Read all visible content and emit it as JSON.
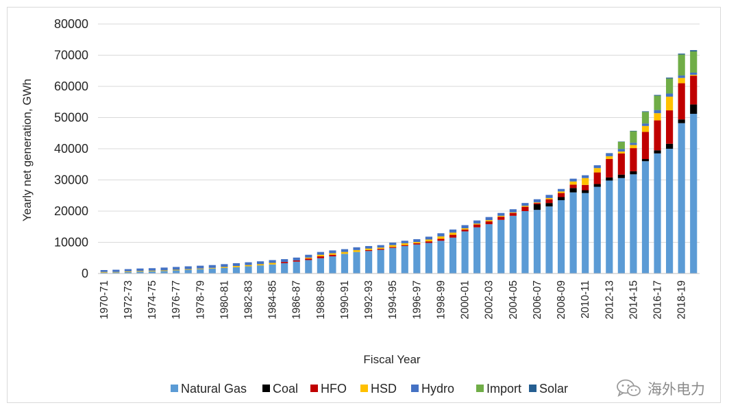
{
  "chart_data": {
    "type": "bar",
    "stacked": true,
    "title": "",
    "xlabel": "Fiscal Year",
    "ylabel": "Yearly net generation, GWh",
    "ylim": [
      0,
      80000
    ],
    "yticks": [
      0,
      10000,
      20000,
      30000,
      40000,
      50000,
      60000,
      70000,
      80000
    ],
    "grid": "horizontal",
    "legend_position": "bottom",
    "categories": [
      "1970-71",
      "1971-72",
      "1972-73",
      "1973-74",
      "1974-75",
      "1975-76",
      "1976-77",
      "1977-78",
      "1978-79",
      "1979-80",
      "1980-81",
      "1981-82",
      "1982-83",
      "1983-84",
      "1984-85",
      "1985-86",
      "1986-87",
      "1987-88",
      "1988-89",
      "1989-90",
      "1990-91",
      "1991-92",
      "1992-93",
      "1993-94",
      "1994-95",
      "1995-96",
      "1996-97",
      "1997-98",
      "1998-99",
      "1999-00",
      "2000-01",
      "2001-02",
      "2002-03",
      "2003-04",
      "2004-05",
      "2005-06",
      "2006-07",
      "2007-08",
      "2008-09",
      "2009-10",
      "2010-11",
      "2011-12",
      "2012-13",
      "2013-14",
      "2014-15",
      "2015-16",
      "2016-17",
      "2017-18",
      "2018-19",
      "2019-20"
    ],
    "tick_labels": [
      "1970-71",
      "1972-73",
      "1974-75",
      "1976-77",
      "1978-79",
      "1980-81",
      "1982-83",
      "1984-85",
      "1986-87",
      "1988-89",
      "1990-91",
      "1992-93",
      "1994-95",
      "1996-97",
      "1998-99",
      "2000-01",
      "2002-03",
      "2004-05",
      "2006-07",
      "2008-09",
      "2010-11",
      "2012-13",
      "2014-15",
      "2016-17",
      "2018-19"
    ],
    "series": [
      {
        "name": "Natural Gas",
        "color": "#5B9BD5",
        "values": [
          300,
          350,
          500,
          600,
          700,
          800,
          1000,
          1200,
          1400,
          1600,
          1800,
          2000,
          2300,
          2600,
          2900,
          3300,
          3800,
          4300,
          4900,
          5500,
          6300,
          6900,
          7200,
          7600,
          8200,
          8800,
          9300,
          9800,
          10500,
          11500,
          13500,
          14800,
          15800,
          17200,
          18500,
          20000,
          20400,
          21500,
          23500,
          26000,
          25800,
          27800,
          29800,
          30600,
          31800,
          36000,
          38500,
          40000,
          48200,
          51200
        ]
      },
      {
        "name": "Coal",
        "color": "#000000",
        "values": [
          0,
          0,
          0,
          0,
          0,
          0,
          0,
          0,
          0,
          0,
          0,
          0,
          0,
          0,
          0,
          0,
          0,
          0,
          0,
          0,
          0,
          0,
          0,
          0,
          0,
          0,
          0,
          0,
          0,
          0,
          0,
          0,
          0,
          0,
          0,
          0,
          1800,
          1100,
          1000,
          1400,
          900,
          900,
          1000,
          1100,
          1000,
          700,
          1000,
          1600,
          1200,
          3000
        ]
      },
      {
        "name": "HFO",
        "color": "#C00000",
        "values": [
          0,
          0,
          0,
          0,
          0,
          0,
          0,
          0,
          0,
          0,
          0,
          0,
          0,
          0,
          0,
          400,
          400,
          500,
          600,
          500,
          0,
          0,
          300,
          300,
          300,
          300,
          400,
          500,
          600,
          900,
          600,
          900,
          900,
          1000,
          900,
          1400,
          400,
          1200,
          1300,
          1100,
          1700,
          3700,
          5900,
          6800,
          7400,
          8700,
          9600,
          10700,
          11600,
          9200
        ]
      },
      {
        "name": "HSD",
        "color": "#FFC000",
        "values": [
          200,
          150,
          200,
          200,
          200,
          200,
          200,
          200,
          200,
          200,
          300,
          400,
          400,
          400,
          500,
          0,
          0,
          300,
          500,
          500,
          600,
          600,
          500,
          400,
          600,
          600,
          400,
          600,
          800,
          700,
          400,
          300,
          400,
          300,
          200,
          300,
          200,
          400,
          500,
          1000,
          2200,
          1400,
          900,
          600,
          1000,
          1900,
          2300,
          4400,
          1700,
          300
        ]
      },
      {
        "name": "Hydro",
        "color": "#4472C4",
        "values": [
          600,
          700,
          700,
          800,
          800,
          900,
          900,
          900,
          900,
          900,
          900,
          900,
          900,
          900,
          900,
          900,
          900,
          900,
          900,
          900,
          900,
          900,
          800,
          800,
          800,
          800,
          900,
          900,
          1000,
          1000,
          1000,
          1000,
          1000,
          900,
          1000,
          900,
          1000,
          1000,
          800,
          900,
          900,
          900,
          900,
          800,
          700,
          800,
          1000,
          1000,
          800,
          700
        ]
      },
      {
        "name": "Import",
        "color": "#70AD47",
        "values": [
          0,
          0,
          0,
          0,
          0,
          0,
          0,
          0,
          0,
          0,
          0,
          0,
          0,
          0,
          0,
          0,
          0,
          0,
          0,
          0,
          0,
          0,
          0,
          0,
          0,
          0,
          0,
          0,
          0,
          0,
          0,
          0,
          0,
          0,
          0,
          0,
          0,
          0,
          0,
          0,
          0,
          0,
          0,
          2300,
          3700,
          3700,
          4600,
          4800,
          6700,
          6800
        ]
      },
      {
        "name": "Solar",
        "color": "#255E91",
        "values": [
          0,
          0,
          0,
          0,
          0,
          0,
          0,
          0,
          0,
          0,
          0,
          0,
          0,
          0,
          0,
          0,
          0,
          0,
          0,
          0,
          0,
          0,
          0,
          0,
          0,
          0,
          0,
          0,
          0,
          0,
          0,
          0,
          0,
          0,
          0,
          0,
          0,
          0,
          0,
          0,
          0,
          0,
          100,
          100,
          150,
          200,
          250,
          300,
          300,
          400
        ]
      }
    ]
  },
  "watermark": {
    "text": "海外电力",
    "icon": "wechat-icon"
  }
}
